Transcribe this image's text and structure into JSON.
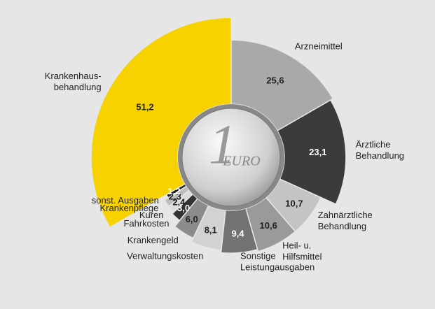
{
  "chart_data": {
    "type": "pie",
    "categories": [
      "Arzneimittel",
      "Ärztliche\nBehandlung",
      "Zahnärztliche\nBehandlung",
      "Heil- u.\nHilfsmittel",
      "Sonstige\nLeistungausgaben",
      "Verwaltungskosten",
      "Krankengeld",
      "Fahrkosten",
      "Kuren",
      "Krankenpflege",
      "sonst. Ausgaben",
      "Krankenhaus-\nbehandlung"
    ],
    "values": [
      25.6,
      23.1,
      10.7,
      10.6,
      9.4,
      8.1,
      6.0,
      3.0,
      2.4,
      2.3,
      1.2,
      51.2
    ],
    "value_labels": [
      "25,6",
      "23,1",
      "10,7",
      "10,6",
      "9,4",
      "8,1",
      "6,0",
      "3,0",
      "2,4",
      "2,3",
      "1,2",
      "51,2"
    ],
    "colors": [
      "#a9a9a9",
      "#3b3b3b",
      "#c4c4c4",
      "#9a9a9a",
      "#727272",
      "#d2d2d2",
      "#8c8c8c",
      "#333333",
      "#dcdcdc",
      "#bdbdbd",
      "#1f1f1f",
      "#f6d200"
    ],
    "coin_numeral": "1",
    "coin_text": "EURO"
  }
}
